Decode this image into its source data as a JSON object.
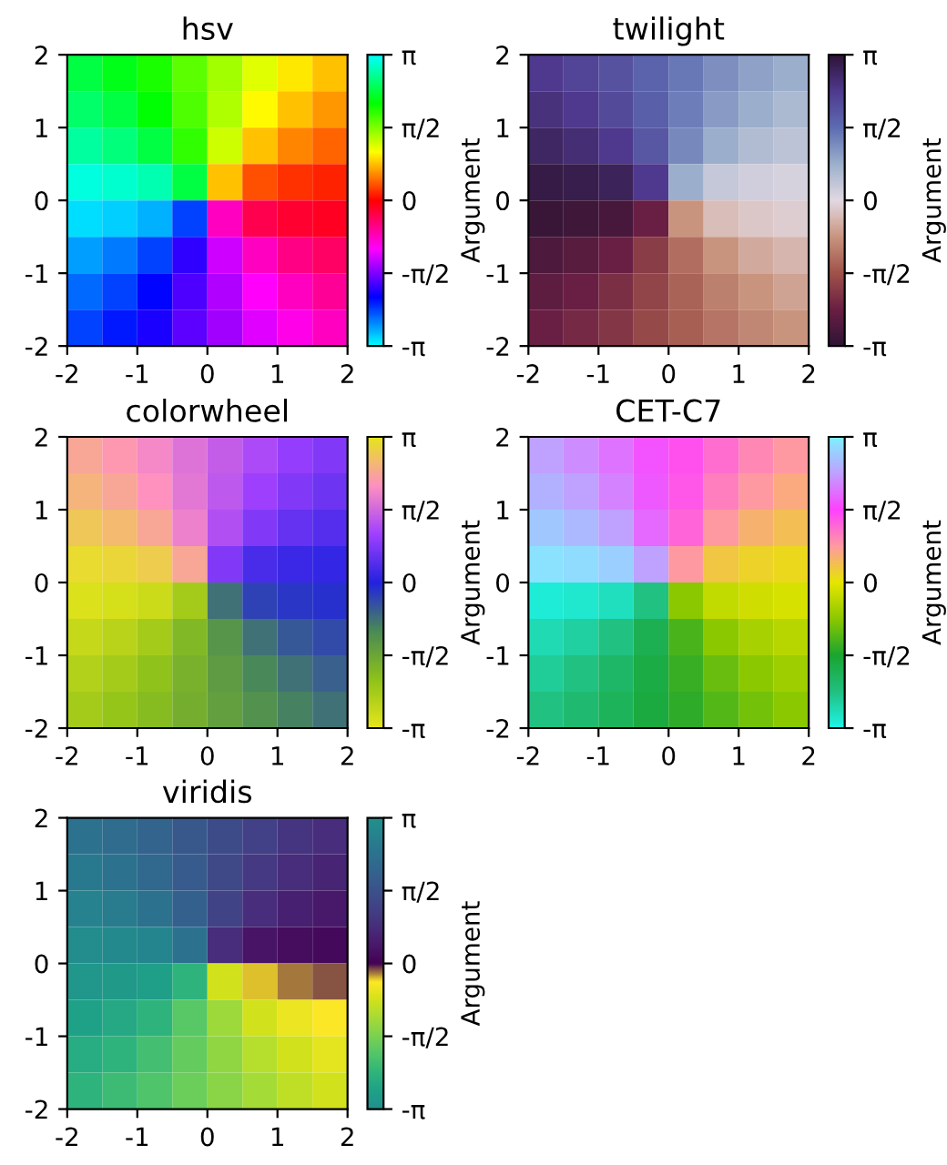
{
  "chart_data": [
    {
      "type": "heatmap",
      "title": "hsv",
      "clabel": "Argument",
      "xlim": [
        -2,
        2
      ],
      "ylim": [
        -2,
        2
      ],
      "xticks": [
        -2,
        -1,
        0,
        1,
        2
      ],
      "yticks": [
        -2,
        -1,
        0,
        1,
        2
      ],
      "clim": [
        -3.1416,
        3.1416
      ],
      "cticks": [
        {
          "value": -3.1416,
          "label": "-π"
        },
        {
          "value": -1.5708,
          "label": "-π/2"
        },
        {
          "value": 0,
          "label": "0"
        },
        {
          "value": 1.5708,
          "label": "π/2"
        },
        {
          "value": 3.1416,
          "label": "π"
        }
      ],
      "colors": [
        "#00ffff",
        "#0000ff",
        "#ff00ff",
        "#ff0000",
        "#ffff00",
        "#00ff00",
        "#00ffff"
      ],
      "cells": [
        [
          2.36,
          2.19,
          1.98,
          1.71,
          1.43,
          1.17,
          0.95,
          0.79
        ],
        [
          2.52,
          2.36,
          2.11,
          1.77,
          1.37,
          1.03,
          0.79,
          0.62
        ],
        [
          2.74,
          2.6,
          2.36,
          1.89,
          1.25,
          0.79,
          0.54,
          0.41
        ],
        [
          3.0,
          2.94,
          2.82,
          2.36,
          0.79,
          0.32,
          0.2,
          0.14
        ],
        [
          -3.0,
          -2.94,
          -2.82,
          -2.36,
          -0.79,
          -0.32,
          -0.2,
          -0.14
        ],
        [
          -2.74,
          -2.6,
          -2.36,
          -1.89,
          -1.25,
          -0.79,
          -0.54,
          -0.41
        ],
        [
          -2.52,
          -2.36,
          -2.11,
          -1.77,
          -1.37,
          -1.03,
          -0.79,
          -0.62
        ],
        [
          -2.36,
          -2.19,
          -1.98,
          -1.71,
          -1.43,
          -1.17,
          -0.95,
          -0.79
        ]
      ]
    },
    {
      "type": "heatmap",
      "title": "twilight",
      "clabel": "Argument",
      "xlim": [
        -2,
        2
      ],
      "ylim": [
        -2,
        2
      ],
      "xticks": [
        -2,
        -1,
        0,
        1,
        2
      ],
      "yticks": [
        -2,
        -1,
        0,
        1,
        2
      ],
      "clim": [
        -3.1416,
        3.1416
      ],
      "cticks": [
        {
          "value": -3.1416,
          "label": "-π"
        },
        {
          "value": -1.5708,
          "label": "-π/2"
        },
        {
          "value": 0,
          "label": "0"
        },
        {
          "value": 1.5708,
          "label": "π/2"
        },
        {
          "value": 3.1416,
          "label": "π"
        }
      ],
      "colors": [
        "#2f1436",
        "#6a1f43",
        "#a0524a",
        "#c9957f",
        "#e2d9e2",
        "#9cb0cc",
        "#5d6cb2",
        "#4f3a8f",
        "#2f1436"
      ],
      "cells": [
        [
          2.36,
          2.19,
          1.98,
          1.71,
          1.43,
          1.17,
          0.95,
          0.79
        ],
        [
          2.52,
          2.36,
          2.11,
          1.77,
          1.37,
          1.03,
          0.79,
          0.62
        ],
        [
          2.74,
          2.6,
          2.36,
          1.89,
          1.25,
          0.79,
          0.54,
          0.41
        ],
        [
          3.0,
          2.94,
          2.82,
          2.36,
          0.79,
          0.32,
          0.2,
          0.14
        ],
        [
          -3.0,
          -2.94,
          -2.82,
          -2.36,
          -0.79,
          -0.32,
          -0.2,
          -0.14
        ],
        [
          -2.74,
          -2.6,
          -2.36,
          -1.89,
          -1.25,
          -0.79,
          -0.54,
          -0.41
        ],
        [
          -2.52,
          -2.36,
          -2.11,
          -1.77,
          -1.37,
          -1.03,
          -0.79,
          -0.62
        ],
        [
          -2.36,
          -2.19,
          -1.98,
          -1.71,
          -1.43,
          -1.17,
          -0.95,
          -0.79
        ]
      ]
    },
    {
      "type": "heatmap",
      "title": "colorwheel",
      "clabel": "Argument",
      "xlim": [
        -2,
        2
      ],
      "ylim": [
        -2,
        2
      ],
      "xticks": [
        -2,
        -1,
        0,
        1,
        2
      ],
      "yticks": [
        -2,
        -1,
        0,
        1,
        2
      ],
      "clim": [
        -3.1416,
        3.1416
      ],
      "cticks": [
        {
          "value": -3.1416,
          "label": "-π"
        },
        {
          "value": -1.5708,
          "label": "-π/2"
        },
        {
          "value": 0,
          "label": "0"
        },
        {
          "value": 1.5708,
          "label": "π/2"
        },
        {
          "value": 3.1416,
          "label": "π"
        }
      ],
      "colors": [
        "#e6e61a",
        "#8ec21a",
        "#4a8a55",
        "#2222e0",
        "#a040ff",
        "#ff90c0",
        "#e6e61a"
      ],
      "cells": [
        [
          2.36,
          2.19,
          1.98,
          1.71,
          1.43,
          1.17,
          0.95,
          0.79
        ],
        [
          2.52,
          2.36,
          2.11,
          1.77,
          1.37,
          1.03,
          0.79,
          0.62
        ],
        [
          2.74,
          2.6,
          2.36,
          1.89,
          1.25,
          0.79,
          0.54,
          0.41
        ],
        [
          3.0,
          2.94,
          2.82,
          2.36,
          0.79,
          0.32,
          0.2,
          0.14
        ],
        [
          -3.0,
          -2.94,
          -2.82,
          -2.36,
          -0.79,
          -0.32,
          -0.2,
          -0.14
        ],
        [
          -2.74,
          -2.6,
          -2.36,
          -1.89,
          -1.25,
          -0.79,
          -0.54,
          -0.41
        ],
        [
          -2.52,
          -2.36,
          -2.11,
          -1.77,
          -1.37,
          -1.03,
          -0.79,
          -0.62
        ],
        [
          -2.36,
          -2.19,
          -1.98,
          -1.71,
          -1.43,
          -1.17,
          -0.95,
          -0.79
        ]
      ]
    },
    {
      "type": "heatmap",
      "title": "CET-C7",
      "clabel": "Argument",
      "xlim": [
        -2,
        2
      ],
      "ylim": [
        -2,
        2
      ],
      "xticks": [
        -2,
        -1,
        0,
        1,
        2
      ],
      "yticks": [
        -2,
        -1,
        0,
        1,
        2
      ],
      "clim": [
        -3.1416,
        3.1416
      ],
      "cticks": [
        {
          "value": -3.1416,
          "label": "-π"
        },
        {
          "value": -1.5708,
          "label": "-π/2"
        },
        {
          "value": 0,
          "label": "0"
        },
        {
          "value": 1.5708,
          "label": "π/2"
        },
        {
          "value": 3.1416,
          "label": "π"
        }
      ],
      "colors": [
        "#1ff5e8",
        "#20c080",
        "#1aa530",
        "#8cc800",
        "#e6e600",
        "#ff9aa0",
        "#ff40ff",
        "#c0a0ff",
        "#80f0ff"
      ],
      "cells": [
        [
          2.36,
          2.19,
          1.98,
          1.71,
          1.43,
          1.17,
          0.95,
          0.79
        ],
        [
          2.52,
          2.36,
          2.11,
          1.77,
          1.37,
          1.03,
          0.79,
          0.62
        ],
        [
          2.74,
          2.6,
          2.36,
          1.89,
          1.25,
          0.79,
          0.54,
          0.41
        ],
        [
          3.0,
          2.94,
          2.82,
          2.36,
          0.79,
          0.32,
          0.2,
          0.14
        ],
        [
          -3.0,
          -2.94,
          -2.82,
          -2.36,
          -0.79,
          -0.32,
          -0.2,
          -0.14
        ],
        [
          -2.74,
          -2.6,
          -2.36,
          -1.89,
          -1.25,
          -0.79,
          -0.54,
          -0.41
        ],
        [
          -2.52,
          -2.36,
          -2.11,
          -1.77,
          -1.37,
          -1.03,
          -0.79,
          -0.62
        ],
        [
          -2.36,
          -2.19,
          -1.98,
          -1.71,
          -1.43,
          -1.17,
          -0.95,
          -0.79
        ]
      ]
    },
    {
      "type": "heatmap",
      "title": "viridis",
      "clabel": "Argument",
      "xlim": [
        -2,
        2
      ],
      "ylim": [
        -2,
        2
      ],
      "xticks": [
        -2,
        -1,
        0,
        1,
        2
      ],
      "yticks": [
        -2,
        -1,
        0,
        1,
        2
      ],
      "clim": [
        -3.1416,
        3.1416
      ],
      "cticks": [
        {
          "value": -3.1416,
          "label": "-π"
        },
        {
          "value": -1.5708,
          "label": "-π/2"
        },
        {
          "value": 0,
          "label": "0"
        },
        {
          "value": 1.5708,
          "label": "π/2"
        },
        {
          "value": 3.1416,
          "label": "π"
        }
      ],
      "colors": [
        "#21918c",
        "#1fa187",
        "#2fb47c",
        "#51c56a",
        "#7ad151",
        "#a5db36",
        "#d2e21b",
        "#fde725",
        "#440154",
        "#48186a",
        "#472d7b",
        "#424086",
        "#3b528b",
        "#33638d",
        "#2c728e",
        "#26828e",
        "#21918c"
      ],
      "cells": [
        [
          2.36,
          2.19,
          1.98,
          1.71,
          1.43,
          1.17,
          0.95,
          0.79
        ],
        [
          2.52,
          2.36,
          2.11,
          1.77,
          1.37,
          1.03,
          0.79,
          0.62
        ],
        [
          2.74,
          2.6,
          2.36,
          1.89,
          1.25,
          0.79,
          0.54,
          0.41
        ],
        [
          3.0,
          2.94,
          2.82,
          2.36,
          0.79,
          0.32,
          0.2,
          0.14
        ],
        [
          -3.0,
          -2.94,
          -2.82,
          -2.36,
          -0.79,
          -0.32,
          -0.2,
          -0.14
        ],
        [
          -2.74,
          -2.6,
          -2.36,
          -1.89,
          -1.25,
          -0.79,
          -0.54,
          -0.41
        ],
        [
          -2.52,
          -2.36,
          -2.11,
          -1.77,
          -1.37,
          -1.03,
          -0.79,
          -0.62
        ],
        [
          -2.36,
          -2.19,
          -1.98,
          -1.71,
          -1.43,
          -1.17,
          -0.95,
          -0.79
        ]
      ]
    }
  ]
}
